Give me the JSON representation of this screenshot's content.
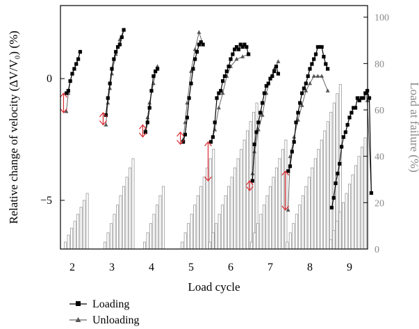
{
  "chart_data": {
    "type": "line",
    "xlabel": "Load cycle",
    "ylabel_left": "Relative change of velocity (ΔV/V₀) (%)",
    "ylabel_right": "Load at failure (%)",
    "ylim_left": [
      -7,
      3
    ],
    "yticks_left": [
      -5,
      0
    ],
    "ylim_right": [
      0,
      105
    ],
    "yticks_right": [
      0,
      20,
      40,
      60,
      80,
      100
    ],
    "categories": [
      "2",
      "3",
      "4",
      "5",
      "6",
      "7",
      "8",
      "9"
    ],
    "legend": {
      "position": "bottom-left",
      "entries": [
        "Loading",
        "Unloading"
      ]
    },
    "colors": {
      "loading": "#000000",
      "unloading": "#666666",
      "load_bars": "#999999",
      "arrows": "#d9272e"
    },
    "cycles": [
      {
        "label": "2",
        "bars": [
          3,
          6,
          9,
          12,
          15,
          18,
          21,
          24
        ],
        "loading": {
          "x": [
            1.85,
            1.9,
            1.95,
            2.0,
            2.05,
            2.1,
            2.15,
            2.2
          ],
          "y": [
            -0.6,
            -0.5,
            -0.1,
            0.2,
            0.4,
            0.6,
            0.8,
            1.1
          ]
        },
        "unloading": {
          "x": [
            2.2,
            2.1,
            2.0,
            1.95,
            1.9,
            1.85
          ],
          "y": [
            1.1,
            0.6,
            0.2,
            -0.1,
            -0.6,
            -1.35
          ]
        },
        "arrow_range": [
          -1.4,
          -0.6
        ]
      },
      {
        "label": "3",
        "bars": [
          3,
          7,
          11,
          15,
          19,
          23,
          27,
          31,
          35,
          39
        ],
        "loading": {
          "x": [
            2.85,
            2.9,
            2.95,
            3.0,
            3.05,
            3.1,
            3.15,
            3.2,
            3.25,
            3.3
          ],
          "y": [
            -1.5,
            -0.8,
            -0.2,
            0.4,
            0.8,
            1.1,
            1.3,
            1.4,
            1.7,
            2.0
          ]
        },
        "unloading": {
          "x": [
            3.3,
            3.2,
            3.1,
            3.0,
            2.95,
            2.9,
            2.85
          ],
          "y": [
            2.0,
            1.6,
            1.0,
            0.2,
            -0.4,
            -1.0,
            -1.9
          ]
        },
        "arrow_range": [
          -1.9,
          -1.4
        ]
      },
      {
        "label": "4",
        "bars": [
          3,
          7,
          11,
          15,
          19,
          23,
          27
        ],
        "loading": {
          "x": [
            3.85,
            3.9,
            3.95,
            4.0,
            4.05,
            4.1,
            4.15
          ],
          "y": [
            -2.2,
            -1.8,
            -1.2,
            -0.5,
            0.1,
            0.3,
            0.4
          ]
        },
        "unloading": {
          "x": [
            4.15,
            4.05,
            3.95,
            3.9,
            3.85
          ],
          "y": [
            0.5,
            -0.2,
            -1.0,
            -1.6,
            -2.1
          ]
        },
        "arrow_range": [
          -2.4,
          -1.9
        ]
      },
      {
        "label": "5",
        "bars": [
          3,
          7,
          11,
          15,
          19,
          23,
          27,
          31,
          35,
          39,
          43
        ],
        "loading": {
          "x": [
            4.8,
            4.85,
            4.9,
            4.95,
            5.0,
            5.05,
            5.1,
            5.15,
            5.2,
            5.25,
            5.3
          ],
          "y": [
            -2.6,
            -2.3,
            -1.6,
            -0.8,
            -0.2,
            0.4,
            0.8,
            1.1,
            1.4,
            1.5,
            1.4
          ]
        },
        "unloading": {
          "x": [
            5.3,
            5.2,
            5.1,
            5.0,
            4.9,
            4.85,
            4.8
          ],
          "y": [
            1.4,
            1.9,
            1.2,
            0.3,
            -1.0,
            -1.8,
            -2.5
          ]
        },
        "arrow_range": [
          -2.7,
          -2.2
        ]
      },
      {
        "label": "6",
        "bars": [
          3,
          7,
          11,
          15,
          19,
          23,
          27,
          31,
          35,
          39,
          43,
          47,
          51,
          55,
          59,
          63
        ],
        "loading": {
          "x": [
            5.5,
            5.55,
            5.6,
            5.65,
            5.7,
            5.75,
            5.8,
            5.85,
            5.9,
            5.95,
            6.0,
            6.05,
            6.1,
            6.15,
            6.2,
            6.25,
            6.3,
            6.35,
            6.4,
            6.45
          ],
          "y": [
            -2.6,
            -2.4,
            -1.8,
            -0.8,
            -0.6,
            -0.5,
            -0.1,
            0.1,
            0.3,
            0.5,
            0.8,
            1.0,
            1.2,
            1.3,
            1.2,
            1.4,
            1.3,
            1.4,
            1.3,
            1.0
          ]
        },
        "unloading": {
          "x": [
            6.45,
            6.3,
            6.15,
            6.0,
            5.9,
            5.8,
            5.7,
            5.6,
            5.55
          ],
          "y": [
            1.0,
            0.9,
            0.8,
            0.5,
            0.1,
            -0.6,
            -1.2,
            -2.1,
            -2.4
          ]
        },
        "arrow_range": [
          -4.2,
          -2.6
        ]
      },
      {
        "label": "7",
        "bars": [
          3,
          7,
          11,
          15,
          19,
          23,
          27,
          31,
          35,
          39,
          43,
          47
        ],
        "loading": {
          "x": [
            6.55,
            6.6,
            6.65,
            6.7,
            6.75,
            6.8,
            6.85,
            6.9,
            6.95,
            7.0,
            7.05,
            7.1,
            7.15,
            7.2
          ],
          "y": [
            -4.2,
            -2.7,
            -2.2,
            -1.8,
            -1.4,
            -1.0,
            -0.6,
            -0.3,
            -0.2,
            0.0,
            0.1,
            0.3,
            0.5,
            0.2
          ]
        },
        "unloading": {
          "x": [
            7.2,
            7.1,
            7.0,
            6.9,
            6.8,
            6.7,
            6.6,
            6.55
          ],
          "y": [
            0.7,
            0.4,
            0.0,
            -0.6,
            -1.5,
            -2.1,
            -3.0,
            -3.9
          ]
        },
        "arrow_range": [
          -4.6,
          -4.2
        ]
      },
      {
        "label": "8",
        "bars": [
          3,
          7,
          11,
          15,
          19,
          23,
          27,
          31,
          35,
          39,
          43,
          47,
          51,
          55,
          59,
          63,
          67,
          71
        ],
        "loading": {
          "x": [
            7.45,
            7.5,
            7.55,
            7.6,
            7.65,
            7.7,
            7.75,
            7.8,
            7.85,
            7.9,
            7.95,
            8.0,
            8.05,
            8.1,
            8.15,
            8.2,
            8.25,
            8.3,
            8.35,
            8.4,
            8.45
          ],
          "y": [
            -3.8,
            -3.6,
            -3.0,
            -2.6,
            -1.8,
            -1.4,
            -1.0,
            -0.6,
            -0.4,
            -0.2,
            0.1,
            0.4,
            0.6,
            0.8,
            1.0,
            1.3,
            1.3,
            1.3,
            0.9,
            0.6,
            0.4
          ]
        },
        "unloading": {
          "x": [
            8.45,
            8.3,
            8.2,
            8.1,
            8.0,
            7.9,
            7.8,
            7.7,
            7.6,
            7.5,
            7.45
          ],
          "y": [
            -0.5,
            0.1,
            0.1,
            0.1,
            -0.2,
            -0.5,
            -1.1,
            -1.7,
            -2.4,
            -3.2,
            -5.4
          ]
        },
        "arrow_range": [
          -5.4,
          -3.8
        ]
      },
      {
        "label": "9",
        "bars": [
          4,
          8,
          12,
          16,
          20,
          24,
          28,
          32,
          36,
          40,
          44,
          48,
          52,
          56,
          60,
          64,
          68,
          72,
          76,
          80,
          84,
          88,
          92,
          96,
          100
        ],
        "loading": {
          "x": [
            8.55,
            8.6,
            8.65,
            8.7,
            8.75,
            8.8,
            8.85,
            8.9,
            8.95,
            9.0,
            9.05,
            9.1,
            9.15,
            9.2,
            9.25,
            9.3,
            9.35,
            9.4,
            9.45,
            9.5,
            9.55
          ],
          "y": [
            -5.3,
            -4.9,
            -4.3,
            -3.9,
            -3.5,
            -2.8,
            -2.4,
            -2.2,
            -1.9,
            -1.6,
            -1.4,
            -1.2,
            -1.2,
            -0.8,
            -0.9,
            -0.8,
            -0.8,
            -0.6,
            -0.5,
            -0.8,
            -4.7
          ]
        },
        "unloading": {
          "x": [
            9.55,
            9.45,
            9.4
          ],
          "y": [
            -4.7,
            -0.9,
            -0.6
          ]
        },
        "arrow_range": null
      }
    ]
  }
}
